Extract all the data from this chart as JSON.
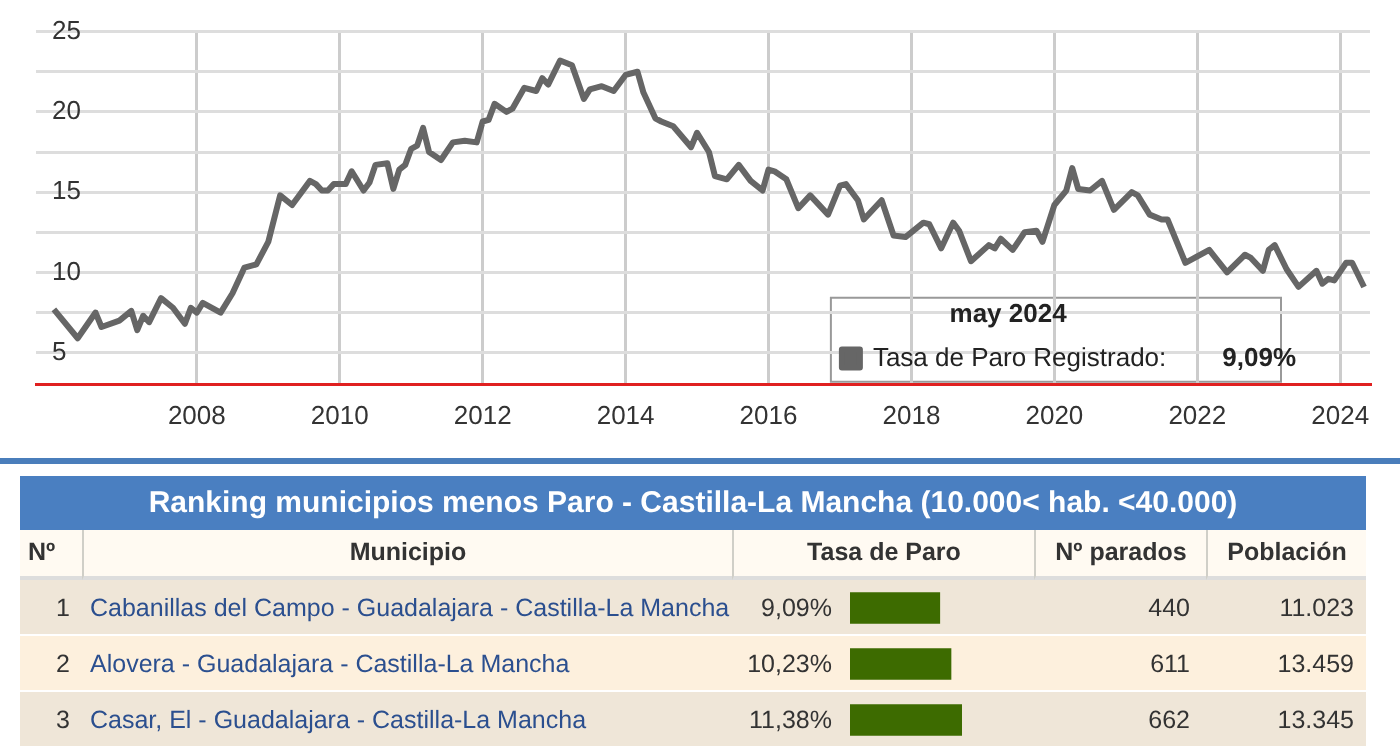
{
  "chart_data": [
    {
      "type": "line",
      "legend": "bottom right",
      "legend_title": "may 2024",
      "grid": true,
      "marker": "none",
      "line_style": "solid",
      "xlim": [
        "2005-10",
        "2024-06"
      ],
      "xticks": [
        "2008",
        "2010",
        "2012",
        "2014",
        "2016",
        "2018",
        "2020",
        "2022",
        "2024"
      ],
      "ylim": [
        3,
        25
      ],
      "yticks": [
        5,
        {
          "value": 7.5,
          "label": null
        },
        10,
        {
          "value": 12.5,
          "label": null
        },
        15,
        {
          "value": 17.5,
          "label": null
        },
        20,
        {
          "value": 22.5,
          "label": null
        },
        25
      ],
      "annotations": [
        "9,09%"
      ],
      "series": [
        {
          "name": "Tasa de Paro Registrado:",
          "color": "#666666",
          "x": [
            "2006-01",
            "2006-05",
            "2006-08",
            "2006-09",
            "2006-12",
            "2007-02",
            "2007-03",
            "2007-04",
            "2007-05",
            "2007-07",
            "2007-09",
            "2007-11",
            "2007-12",
            "2008-01",
            "2008-02",
            "2008-05",
            "2008-07",
            "2008-09",
            "2008-11",
            "2009-01",
            "2009-03",
            "2009-05",
            "2009-06",
            "2009-08",
            "2009-09",
            "2009-10",
            "2009-11",
            "2009-12",
            "2010-02",
            "2010-03",
            "2010-05",
            "2010-06",
            "2010-07",
            "2010-09",
            "2010-10",
            "2010-11",
            "2010-12",
            "2011-01",
            "2011-02",
            "2011-03",
            "2011-04",
            "2011-06",
            "2011-08",
            "2011-10",
            "2011-12",
            "2012-01",
            "2012-02",
            "2012-03",
            "2012-05",
            "2012-06",
            "2012-08",
            "2012-10",
            "2012-11",
            "2012-12",
            "2013-02",
            "2013-04",
            "2013-06",
            "2013-07",
            "2013-09",
            "2013-11",
            "2014-01",
            "2014-03",
            "2014-04",
            "2014-06",
            "2014-07",
            "2014-09",
            "2014-12",
            "2015-01",
            "2015-03",
            "2015-04",
            "2015-06",
            "2015-08",
            "2015-10",
            "2015-12",
            "2016-01",
            "2016-02",
            "2016-04",
            "2016-06",
            "2016-08",
            "2016-11",
            "2017-01",
            "2017-02",
            "2017-04",
            "2017-05",
            "2017-08",
            "2017-10",
            "2017-12",
            "2018-03",
            "2018-04",
            "2018-06",
            "2018-08",
            "2018-09",
            "2018-11",
            "2019-02",
            "2019-03",
            "2019-04",
            "2019-06",
            "2019-08",
            "2019-10",
            "2019-11",
            "2020-01",
            "2020-03",
            "2020-04",
            "2020-05",
            "2020-07",
            "2020-09",
            "2020-11",
            "2021-02",
            "2021-03",
            "2021-05",
            "2021-07",
            "2021-08",
            "2021-11",
            "2022-03",
            "2022-06",
            "2022-09",
            "2022-10",
            "2022-12",
            "2023-01",
            "2023-02",
            "2023-04",
            "2023-06",
            "2023-09",
            "2023-10",
            "2023-11",
            "2023-12",
            "2024-02",
            "2024-03",
            "2024-05"
          ],
          "values": [
            7.7,
            5.9,
            7.5,
            6.6,
            7.0,
            7.6,
            6.4,
            7.3,
            6.9,
            8.4,
            7.8,
            6.8,
            7.8,
            7.5,
            8.1,
            7.5,
            8.7,
            10.3,
            10.5,
            11.9,
            14.8,
            14.2,
            14.7,
            15.7,
            15.5,
            15.1,
            15.1,
            15.5,
            15.5,
            16.3,
            15.1,
            15.6,
            16.7,
            16.8,
            15.2,
            16.4,
            16.7,
            17.7,
            17.9,
            19.0,
            17.5,
            17.0,
            18.1,
            18.2,
            18.1,
            19.4,
            19.5,
            20.5,
            20.0,
            20.2,
            21.5,
            21.3,
            22.1,
            21.7,
            23.2,
            22.9,
            20.8,
            21.4,
            21.6,
            21.3,
            22.3,
            22.5,
            21.2,
            19.6,
            19.4,
            19.1,
            17.8,
            18.7,
            17.5,
            16.0,
            15.8,
            16.7,
            15.7,
            15.1,
            16.4,
            16.3,
            15.8,
            14.0,
            14.8,
            13.6,
            15.4,
            15.5,
            14.5,
            13.3,
            14.5,
            12.3,
            12.2,
            13.1,
            13.0,
            11.5,
            13.1,
            12.6,
            10.7,
            11.7,
            11.5,
            12.1,
            11.4,
            12.5,
            12.6,
            11.9,
            14.2,
            15.1,
            16.5,
            15.2,
            15.1,
            15.7,
            13.9,
            15.0,
            14.8,
            13.6,
            13.3,
            13.3,
            10.6,
            11.4,
            10.0,
            11.1,
            10.9,
            10.1,
            11.4,
            11.7,
            10.2,
            9.1,
            10.1,
            9.3,
            9.6,
            9.5,
            10.6,
            10.6,
            9.09
          ]
        }
      ]
    },
    {
      "type": "bar",
      "orientation": "horizontal",
      "title": "Ranking municipios menos Paro - Castilla-La Mancha (10.000< hab. <40.000)",
      "ylabel": "Municipio",
      "xlabel": "Tasa de Paro",
      "categories": [
        "Cabanillas del Campo - Guadalajara - Castilla-La Mancha",
        "Alovera - Guadalajara - Castilla-La Mancha",
        "Casar, El - Guadalajara - Castilla-La Mancha"
      ],
      "values": [
        9.09,
        10.23,
        11.38
      ],
      "value_labels": [
        "9,09%",
        "10,23%",
        "11,38%"
      ],
      "color": "#3d6b00",
      "annotations": [
        "Nº",
        "Nº parados",
        "Población",
        "1",
        "2",
        "3",
        "440",
        "611",
        "662",
        "11.023",
        "13.459",
        "13.345"
      ]
    }
  ]
}
